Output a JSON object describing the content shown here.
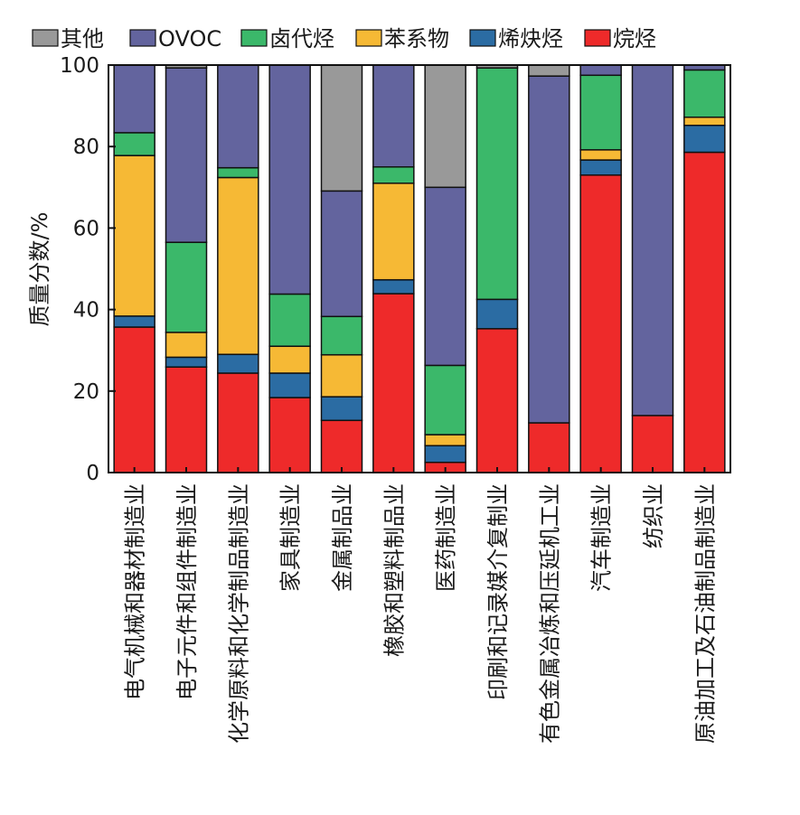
{
  "chart_data": {
    "type": "bar",
    "stacked": true,
    "title": "",
    "xlabel": "",
    "ylabel": "质量分数/%",
    "ylim": [
      0,
      100
    ],
    "yticks": [
      "0",
      "20",
      "40",
      "60",
      "80",
      "100"
    ],
    "legend_position": "top",
    "categories": [
      "电气机械和器材制造业",
      "电子元件和组件制造业",
      "化学原料和化学制品制造业",
      "家具制造业",
      "金属制品业",
      "橡胶和塑料制品业",
      "医药制造业",
      "印刷和记录媒介复制业",
      "有色金属冶炼和压延机工业",
      "汽车制造业",
      "纺织业",
      "原油加工及石油制品制造业"
    ],
    "series": [
      {
        "name": "烷烃",
        "color": "#ee2a2a",
        "values": [
          35.7,
          25.9,
          24.4,
          18.4,
          12.8,
          43.9,
          2.5,
          35.3,
          12.2,
          73.0,
          14.0,
          78.6
        ]
      },
      {
        "name": "烯炔烃",
        "color": "#2b6ca3",
        "values": [
          2.7,
          2.4,
          4.6,
          6.0,
          5.8,
          3.4,
          4.1,
          7.2,
          0,
          3.7,
          0,
          6.6
        ]
      },
      {
        "name": "苯系物",
        "color": "#f6b935",
        "values": [
          39.4,
          6.1,
          43.4,
          6.6,
          10.3,
          23.7,
          2.7,
          0,
          0,
          2.5,
          0,
          2.0
        ]
      },
      {
        "name": "卤代烃",
        "color": "#3bb86a",
        "values": [
          5.6,
          22.1,
          2.4,
          12.8,
          9.4,
          4.0,
          17.0,
          56.8,
          0,
          18.3,
          0,
          11.6
        ]
      },
      {
        "name": "OVOC",
        "color": "#63649e",
        "values": [
          16.6,
          42.8,
          25.2,
          56.2,
          30.8,
          25.0,
          43.7,
          0,
          85.1,
          2.5,
          86.0,
          1.2
        ]
      },
      {
        "name": "其他",
        "color": "#999999",
        "values": [
          0,
          0.7,
          0,
          0,
          30.9,
          0,
          30.0,
          0.7,
          2.7,
          0,
          0,
          0
        ]
      }
    ],
    "legend_order": [
      "其他",
      "OVOC",
      "卤代烃",
      "苯系物",
      "烯炔烃",
      "烷烃"
    ]
  }
}
